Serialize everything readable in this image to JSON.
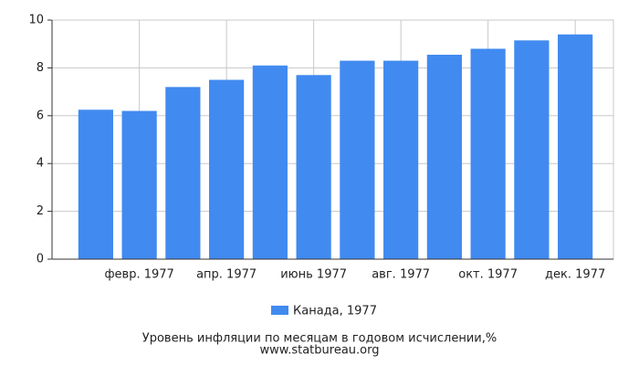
{
  "chart_data": {
    "type": "bar",
    "categories": [
      null,
      "февр. 1977",
      null,
      "апр. 1977",
      null,
      "июнь 1977",
      null,
      "авг. 1977",
      null,
      "окт. 1977",
      null,
      "дек. 1977"
    ],
    "series": [
      {
        "name": "Канада, 1977",
        "color": "#418af0",
        "values": [
          6.25,
          6.2,
          7.2,
          7.5,
          8.1,
          7.7,
          8.3,
          8.3,
          8.55,
          8.8,
          9.15,
          9.4
        ]
      }
    ],
    "ylim": [
      0,
      10
    ],
    "yticks": [
      0,
      2,
      4,
      6,
      8,
      10
    ],
    "grid": true,
    "title": "Уровень инфляции по месяцам в годовом исчислении,%",
    "source": "www.statbureau.org"
  }
}
